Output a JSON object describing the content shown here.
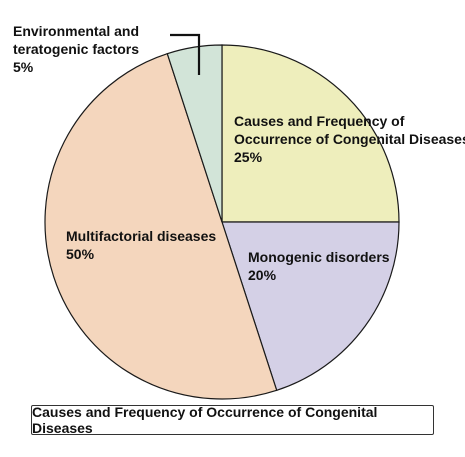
{
  "chart_data": {
    "type": "pie",
    "title": "Causes and Frequency of Occurrence of Congenital Diseases",
    "slices": [
      {
        "name": "Causes and Frequency of Occurrence of Congenital Diseases",
        "label_lines": [
          "Causes and Frequency of",
          "Occurrence of Congenital Diseases",
          "25%"
        ],
        "value": 25,
        "color": "#eeeebc"
      },
      {
        "name": "Monogenic disorders",
        "label_lines": [
          "Monogenic disorders",
          "20%"
        ],
        "value": 20,
        "color": "#d4d0e6"
      },
      {
        "name": "Multifactorial diseases",
        "label_lines": [
          "Multifactorial diseases",
          "50%"
        ],
        "value": 50,
        "color": "#f4d6bd"
      },
      {
        "name": "Environmental and teratogenic factors",
        "label_lines": [
          "Environmental and",
          "teratogenic factors",
          "5%"
        ],
        "value": 5,
        "color": "#d2e4d8"
      }
    ],
    "start_angle": "top, clockwise",
    "legend": "none"
  }
}
